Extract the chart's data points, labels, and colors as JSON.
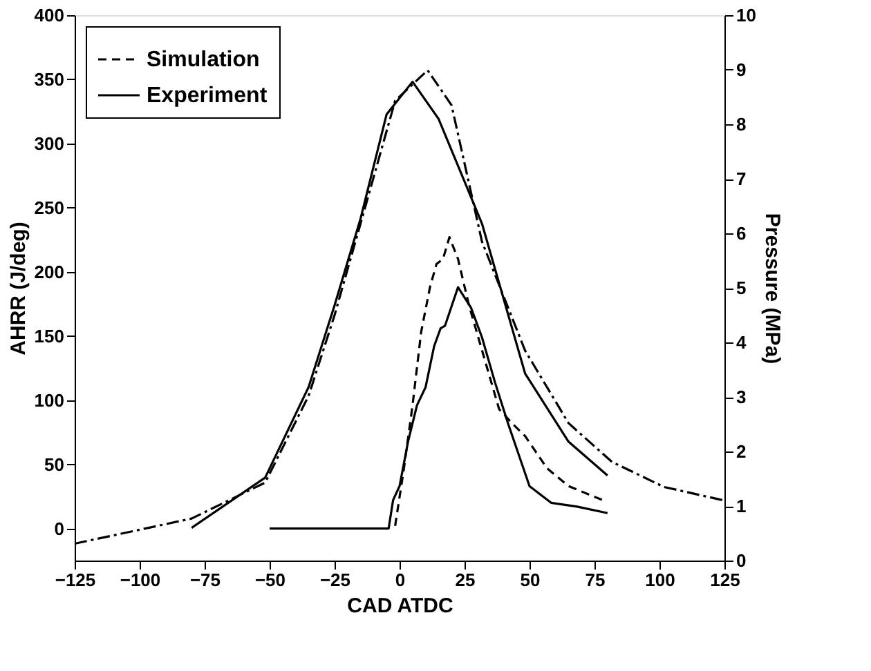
{
  "chart_data": {
    "type": "line",
    "xlabel": "CAD ATDC",
    "ylabel": "AHRR (J/deg)",
    "y2label": "Pressure (MPa)",
    "xlim": [
      -125,
      125
    ],
    "xticks": [
      -125,
      -100,
      -75,
      -50,
      -25,
      0,
      25,
      50,
      75,
      100,
      125
    ],
    "ylim": [
      -25,
      400
    ],
    "yticks": [
      0,
      50,
      100,
      150,
      200,
      250,
      300,
      350,
      400
    ],
    "y2lim": [
      0,
      10
    ],
    "y2ticks": [
      0,
      1,
      2,
      3,
      4,
      5,
      6,
      7,
      8,
      9,
      10
    ],
    "grid": false,
    "legend": "top left",
    "marker": "none",
    "series": [
      {
        "name": "Simulation",
        "color": "#000000",
        "line_style": "dashed",
        "axis": "y",
        "x": [
          -1.7,
          1.7,
          5,
          8.3,
          11.7,
          14.2,
          16.7,
          19.2,
          22.5,
          26.7,
          31.7,
          38.3,
          43.3,
          48.3,
          56.7,
          65,
          78.3
        ],
        "values": [
          2,
          47,
          96,
          153,
          188,
          206,
          210,
          227,
          210,
          174,
          139,
          93,
          82,
          72,
          47,
          33,
          22
        ]
      },
      {
        "name": "Experiment",
        "color": "#000000",
        "line_style": "solid",
        "axis": "y",
        "x": [
          -50,
          -4.2,
          -2.5,
          0,
          3.3,
          6.7,
          10,
          13.3,
          15.8,
          17.5,
          22.5,
          27.5,
          31.7,
          36.7,
          41.7,
          50,
          58.3,
          68.3,
          80
        ],
        "values": [
          0,
          0,
          22,
          33,
          68,
          96,
          110,
          142,
          156,
          158,
          188,
          172,
          149,
          114,
          82,
          33,
          20,
          17,
          12
        ]
      },
      {
        "color": "#000000",
        "line_style": "dashdot",
        "axis": "y2",
        "x": [
          -125,
          -80,
          -51.7,
          -35,
          -25,
          -15,
          -1.7,
          10.8,
          20,
          31.7,
          40,
          48.3,
          65,
          81.7,
          101.7,
          125
        ],
        "values": [
          0.31,
          0.77,
          1.43,
          3.02,
          4.5,
          6.18,
          8.43,
          8.99,
          8.35,
          5.85,
          4.85,
          3.85,
          2.52,
          1.81,
          1.35,
          1.1
        ]
      },
      {
        "color": "#000000",
        "line_style": "solid",
        "axis": "y2",
        "x": [
          -80,
          -51.7,
          -35,
          -25,
          -15,
          -5,
          5,
          15,
          31.7,
          48.3,
          65,
          80
        ],
        "values": [
          0.6,
          1.52,
          3.18,
          4.68,
          6.27,
          8.18,
          8.78,
          8.1,
          6.18,
          3.43,
          2.18,
          1.56
        ]
      }
    ]
  }
}
